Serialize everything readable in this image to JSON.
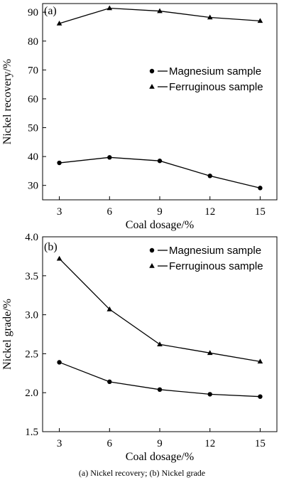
{
  "caption": "(a) Nickel recovery; (b) Nickel grade",
  "chart_data": [
    {
      "type": "line",
      "panel_label": "(a)",
      "xlabel": "Coal dosage/%",
      "ylabel": "Nickel recovery/%",
      "x": [
        3,
        6,
        9,
        12,
        15
      ],
      "xticks": [
        "3",
        "6",
        "9",
        "12",
        "15"
      ],
      "yticks": [
        "30",
        "40",
        "50",
        "60",
        "70",
        "80",
        "90"
      ],
      "xlim": [
        2,
        16
      ],
      "ylim": [
        25,
        93
      ],
      "legend_position": "right",
      "series": [
        {
          "name": "Magnesium sample",
          "marker": "circle",
          "values": [
            37.8,
            39.7,
            38.5,
            33.3,
            29.1
          ]
        },
        {
          "name": "Ferruginous sample",
          "marker": "triangle",
          "values": [
            86.1,
            91.4,
            90.4,
            88.2,
            87.0
          ]
        }
      ]
    },
    {
      "type": "line",
      "panel_label": "(b)",
      "xlabel": "Coal dosage/%",
      "ylabel": "Nickel grade/%",
      "x": [
        3,
        6,
        9,
        12,
        15
      ],
      "xticks": [
        "3",
        "6",
        "9",
        "12",
        "15"
      ],
      "yticks": [
        "1.5",
        "2.0",
        "2.5",
        "3.0",
        "3.5",
        "4.0"
      ],
      "xlim": [
        2,
        16
      ],
      "ylim": [
        1.5,
        4.0
      ],
      "legend_position": "top-right",
      "series": [
        {
          "name": "Magnesium sample",
          "marker": "circle",
          "values": [
            2.39,
            2.14,
            2.04,
            1.98,
            1.95
          ]
        },
        {
          "name": "Ferruginous sample",
          "marker": "triangle",
          "values": [
            3.72,
            3.07,
            2.62,
            2.51,
            2.4
          ]
        }
      ]
    }
  ]
}
